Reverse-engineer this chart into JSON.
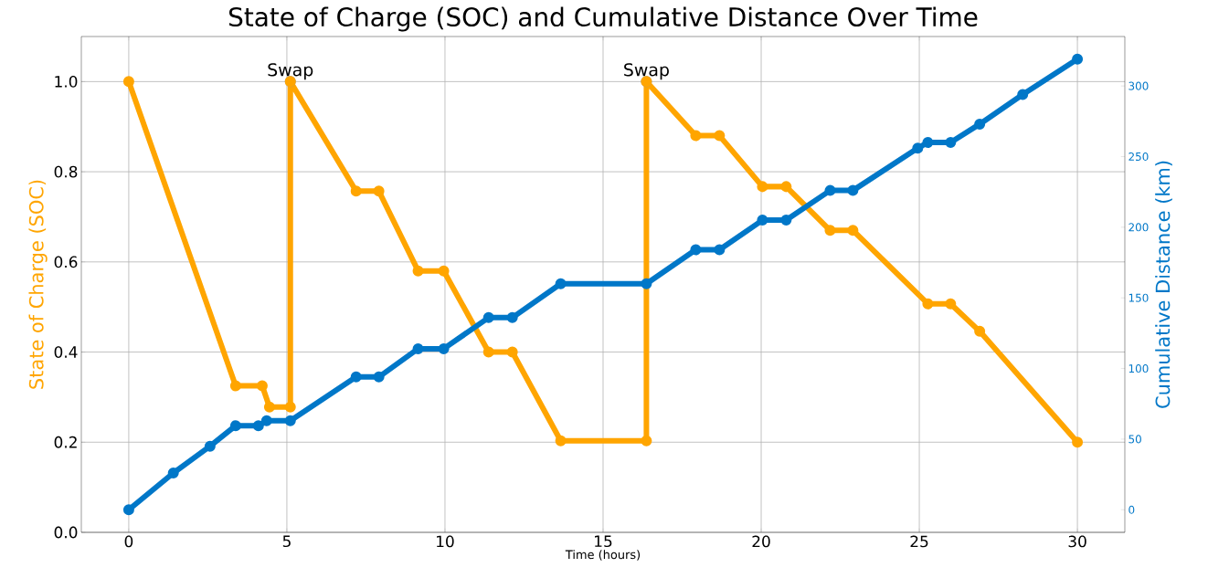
{
  "chart_data": {
    "type": "line",
    "title": "State of Charge (SOC) and Cumulative Distance Over Time",
    "xlabel": "Time (hours)",
    "ylabel": "State of Charge (SOC)",
    "y2label": "Cumulative Distance (km)",
    "grid": true,
    "marker": "circle",
    "line_style": "solid",
    "xlim": [
      -1.5,
      31.5
    ],
    "xticks": [
      0,
      5,
      10,
      15,
      20,
      25,
      30
    ],
    "ylim": [
      0,
      1.1
    ],
    "yticks": [
      {
        "value": 0,
        "label": "0.0"
      },
      0.2,
      0.4,
      0.6,
      0.8,
      {
        "value": 1,
        "label": "1.0"
      }
    ],
    "y2lim": [
      -16,
      335
    ],
    "y2ticks": [
      0,
      50,
      100,
      150,
      200,
      250,
      300
    ],
    "series": [
      {
        "color": "#ffa500",
        "x": [
          0,
          3.38,
          4.22,
          4.45,
          5.11,
          5.11,
          7.19,
          7.91,
          9.15,
          9.96,
          11.38,
          12.13,
          13.66,
          16.37,
          16.37,
          17.93,
          18.68,
          20.04,
          20.79,
          22.18,
          22.9,
          25.27,
          25.99,
          26.91,
          30
        ],
        "values": [
          1.0,
          0.325,
          0.325,
          0.278,
          0.278,
          1.0,
          0.757,
          0.757,
          0.58,
          0.58,
          0.4,
          0.4,
          0.203,
          0.203,
          1.0,
          0.88,
          0.88,
          0.767,
          0.767,
          0.67,
          0.67,
          0.507,
          0.507,
          0.446,
          0.2
        ]
      },
      {
        "color": "#0077c8",
        "axis": "y2",
        "x": [
          0,
          1.41,
          2.57,
          3.38,
          4.1,
          4.36,
          5.11,
          7.19,
          7.91,
          9.15,
          9.96,
          11.38,
          12.13,
          13.66,
          16.37,
          17.93,
          18.68,
          20.04,
          20.79,
          22.18,
          22.9,
          24.95,
          25.27,
          25.99,
          26.91,
          28.27,
          30
        ],
        "values": [
          0,
          26,
          45,
          59.5,
          59.5,
          63,
          63,
          94,
          94,
          114,
          114,
          136,
          136,
          160,
          160,
          184,
          184,
          205,
          205,
          226,
          226,
          256,
          260,
          260,
          273,
          294,
          319
        ]
      }
    ],
    "annotations": [
      {
        "text": "Swap",
        "x": 5.11,
        "y": 1.0
      },
      {
        "text": "Swap",
        "x": 16.37,
        "y": 1.0
      }
    ]
  }
}
